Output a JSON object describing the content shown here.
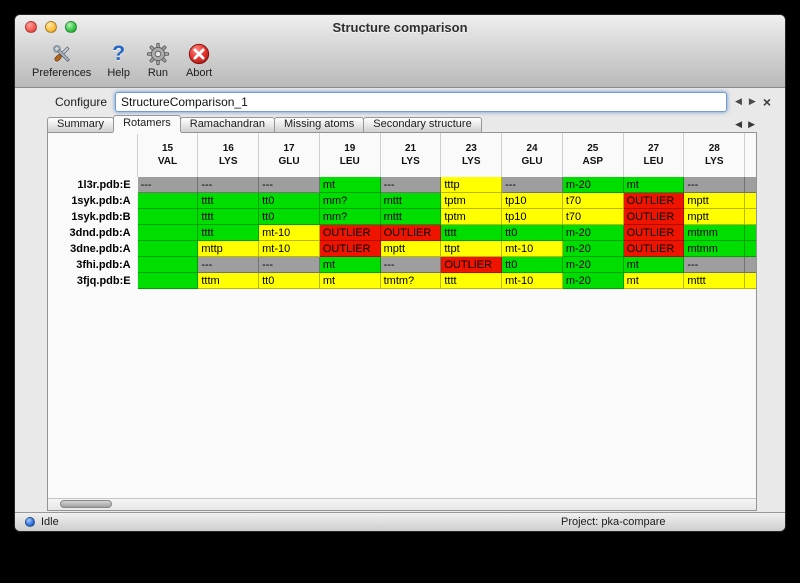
{
  "window": {
    "title": "Structure comparison"
  },
  "toolbar": {
    "buttons": [
      {
        "label": "Preferences"
      },
      {
        "label": "Help"
      },
      {
        "label": "Run"
      },
      {
        "label": "Abort"
      }
    ]
  },
  "configure": {
    "label": "Configure",
    "value": "StructureComparison_1",
    "nav_prev": "◀",
    "nav_next": "▶",
    "close": "×"
  },
  "tabs": [
    {
      "label": "Summary",
      "active": false
    },
    {
      "label": "Rotamers",
      "active": true
    },
    {
      "label": "Ramachandran",
      "active": false
    },
    {
      "label": "Missing atoms",
      "active": false
    },
    {
      "label": "Secondary structure",
      "active": false
    }
  ],
  "tab_nav": {
    "prev": "◀",
    "next": "▶"
  },
  "colors": {
    "green": "#00dd00",
    "yellow": "#ffff00",
    "gray": "#9e9e9e",
    "red": "#ee1400"
  },
  "table": {
    "columns": [
      {
        "number": "15",
        "residue": "VAL"
      },
      {
        "number": "16",
        "residue": "LYS"
      },
      {
        "number": "17",
        "residue": "GLU"
      },
      {
        "number": "19",
        "residue": "LEU"
      },
      {
        "number": "21",
        "residue": "LYS"
      },
      {
        "number": "23",
        "residue": "LYS"
      },
      {
        "number": "24",
        "residue": "GLU"
      },
      {
        "number": "25",
        "residue": "ASP"
      },
      {
        "number": "27",
        "residue": "LEU"
      },
      {
        "number": "28",
        "residue": "LYS"
      }
    ],
    "rows": [
      {
        "label": "1l3r.pdb:E",
        "partial": "gray",
        "cells": [
          {
            "text": "---",
            "status": "gray"
          },
          {
            "text": "---",
            "status": "gray"
          },
          {
            "text": "---",
            "status": "gray"
          },
          {
            "text": "mt",
            "status": "green"
          },
          {
            "text": "---",
            "status": "gray"
          },
          {
            "text": "tttp",
            "status": "yellow"
          },
          {
            "text": "---",
            "status": "gray"
          },
          {
            "text": "m-20",
            "status": "green"
          },
          {
            "text": "mt",
            "status": "green"
          },
          {
            "text": "---",
            "status": "gray"
          }
        ]
      },
      {
        "label": "1syk.pdb:A",
        "partial": "yellow",
        "cells": [
          {
            "text": "",
            "status": "green"
          },
          {
            "text": "tttt",
            "status": "green"
          },
          {
            "text": "tt0",
            "status": "green"
          },
          {
            "text": "mm?",
            "status": "green"
          },
          {
            "text": "mttt",
            "status": "green"
          },
          {
            "text": "tptm",
            "status": "yellow"
          },
          {
            "text": "tp10",
            "status": "yellow"
          },
          {
            "text": "t70",
            "status": "yellow"
          },
          {
            "text": "OUTLIER",
            "status": "red"
          },
          {
            "text": "mptt",
            "status": "yellow"
          }
        ]
      },
      {
        "label": "1syk.pdb:B",
        "partial": "yellow",
        "cells": [
          {
            "text": "",
            "status": "green"
          },
          {
            "text": "tttt",
            "status": "green"
          },
          {
            "text": "tt0",
            "status": "green"
          },
          {
            "text": "mm?",
            "status": "green"
          },
          {
            "text": "mttt",
            "status": "green"
          },
          {
            "text": "tptm",
            "status": "yellow"
          },
          {
            "text": "tp10",
            "status": "yellow"
          },
          {
            "text": "t70",
            "status": "yellow"
          },
          {
            "text": "OUTLIER",
            "status": "red"
          },
          {
            "text": "mptt",
            "status": "yellow"
          }
        ]
      },
      {
        "label": "3dnd.pdb:A",
        "partial": "green",
        "cells": [
          {
            "text": "",
            "status": "green"
          },
          {
            "text": "tttt",
            "status": "green"
          },
          {
            "text": "mt-10",
            "status": "yellow"
          },
          {
            "text": "OUTLIER",
            "status": "red"
          },
          {
            "text": "OUTLIER",
            "status": "red"
          },
          {
            "text": "tttt",
            "status": "green"
          },
          {
            "text": "tt0",
            "status": "green"
          },
          {
            "text": "m-20",
            "status": "green"
          },
          {
            "text": "OUTLIER",
            "status": "red"
          },
          {
            "text": "mtmm",
            "status": "green"
          }
        ]
      },
      {
        "label": "3dne.pdb:A",
        "partial": "green",
        "cells": [
          {
            "text": "",
            "status": "green"
          },
          {
            "text": "mttp",
            "status": "yellow"
          },
          {
            "text": "mt-10",
            "status": "yellow"
          },
          {
            "text": "OUTLIER",
            "status": "red"
          },
          {
            "text": "mptt",
            "status": "yellow"
          },
          {
            "text": "ttpt",
            "status": "yellow"
          },
          {
            "text": "mt-10",
            "status": "yellow"
          },
          {
            "text": "m-20",
            "status": "green"
          },
          {
            "text": "OUTLIER",
            "status": "red"
          },
          {
            "text": "mtmm",
            "status": "green"
          }
        ]
      },
      {
        "label": "3fhi.pdb:A",
        "partial": "gray",
        "cells": [
          {
            "text": "",
            "status": "green"
          },
          {
            "text": "---",
            "status": "gray"
          },
          {
            "text": "---",
            "status": "gray"
          },
          {
            "text": "mt",
            "status": "green"
          },
          {
            "text": "---",
            "status": "gray"
          },
          {
            "text": "OUTLIER",
            "status": "red"
          },
          {
            "text": "tt0",
            "status": "green"
          },
          {
            "text": "m-20",
            "status": "green"
          },
          {
            "text": "mt",
            "status": "green"
          },
          {
            "text": "---",
            "status": "gray"
          }
        ]
      },
      {
        "label": "3fjq.pdb:E",
        "partial": "yellow",
        "cells": [
          {
            "text": "",
            "status": "green"
          },
          {
            "text": "tttm",
            "status": "yellow"
          },
          {
            "text": "tt0",
            "status": "yellow"
          },
          {
            "text": "mt",
            "status": "yellow"
          },
          {
            "text": "tmtm?",
            "status": "yellow"
          },
          {
            "text": "tttt",
            "status": "yellow"
          },
          {
            "text": "mt-10",
            "status": "yellow"
          },
          {
            "text": "m-20",
            "status": "green"
          },
          {
            "text": "mt",
            "status": "yellow"
          },
          {
            "text": "mttt",
            "status": "yellow"
          }
        ]
      }
    ]
  },
  "status_bar": {
    "status": "Idle",
    "project": "Project: pka-compare"
  }
}
